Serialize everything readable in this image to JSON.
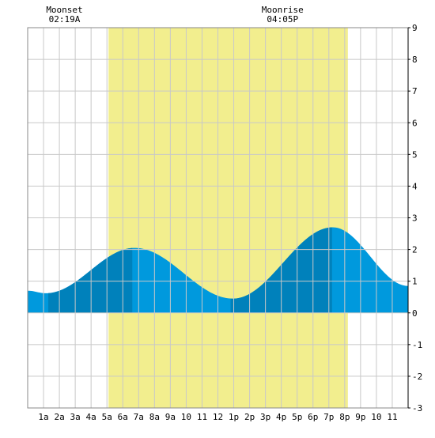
{
  "chart_data": {
    "type": "area",
    "x_unit": "hour of day",
    "xlim": [
      0,
      24
    ],
    "ylim": [
      -3,
      9
    ],
    "grid": true,
    "legend": "none",
    "y_ticks": [
      "-3",
      "-2",
      "-1",
      "0",
      "1",
      "2",
      "3",
      "4",
      "5",
      "6",
      "7",
      "8",
      "9"
    ],
    "x_ticks": [
      {
        "x": 1,
        "label": "1a"
      },
      {
        "x": 2,
        "label": "2a"
      },
      {
        "x": 3,
        "label": "3a"
      },
      {
        "x": 4,
        "label": "4a"
      },
      {
        "x": 5,
        "label": "5a"
      },
      {
        "x": 6,
        "label": "6a"
      },
      {
        "x": 7,
        "label": "7a"
      },
      {
        "x": 8,
        "label": "8a"
      },
      {
        "x": 9,
        "label": "9a"
      },
      {
        "x": 10,
        "label": "10"
      },
      {
        "x": 11,
        "label": "11"
      },
      {
        "x": 12,
        "label": "12"
      },
      {
        "x": 13,
        "label": "1p"
      },
      {
        "x": 14,
        "label": "2p"
      },
      {
        "x": 15,
        "label": "3p"
      },
      {
        "x": 16,
        "label": "4p"
      },
      {
        "x": 17,
        "label": "5p"
      },
      {
        "x": 18,
        "label": "6p"
      },
      {
        "x": 19,
        "label": "7p"
      },
      {
        "x": 20,
        "label": "8p"
      },
      {
        "x": 21,
        "label": "9p"
      },
      {
        "x": 22,
        "label": "10"
      },
      {
        "x": 23,
        "label": "11"
      }
    ],
    "daylight": {
      "start": 5.1,
      "end": 20.2
    },
    "tide_extrema": [
      {
        "x": 0.0,
        "y": 0.7
      },
      {
        "x": 1.15,
        "y": 0.62
      },
      {
        "x": 6.75,
        "y": 2.05
      },
      {
        "x": 12.95,
        "y": 0.45
      },
      {
        "x": 19.25,
        "y": 2.7
      },
      {
        "x": 24.0,
        "y": 0.85
      }
    ],
    "dark_bands": [
      [
        1.3,
        6.6
      ],
      [
        12.8,
        19.2
      ]
    ],
    "moon_events": [
      {
        "label": "Moonset",
        "time": "02:19A",
        "x": 2.32
      },
      {
        "label": "Moonrise",
        "time": "04:05P",
        "x": 16.08
      }
    ],
    "colors": {
      "daylight": "#f2ee8e",
      "tide": "#0099dd",
      "tide_dark": "#0081bb",
      "grid": "#c8c8c8",
      "axis": "#000000"
    }
  }
}
